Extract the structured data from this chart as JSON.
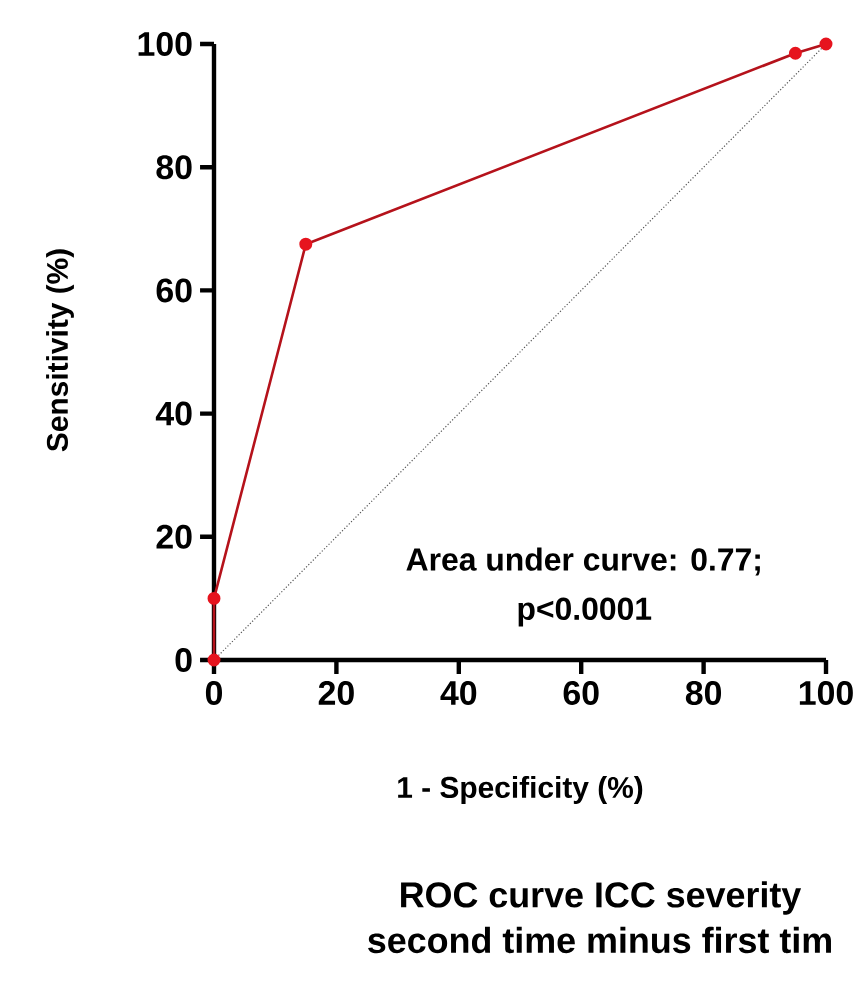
{
  "chart_data": {
    "type": "line",
    "xlabel": "1 - Specificity (%)",
    "ylabel": "Sensitivity  (%)",
    "title": "ROC curve ICC severity",
    "subtitle": "second time minus first tim",
    "annotations": [
      "Area under curve: 0.77;",
      "p<0.0001"
    ],
    "xlim": [
      0,
      100
    ],
    "ylim": [
      0,
      100
    ],
    "xticks": [
      0,
      20,
      40,
      60,
      80,
      100
    ],
    "yticks": [
      0,
      20,
      40,
      60,
      80,
      100
    ],
    "grid": false,
    "series": [
      {
        "color": "#b5121b",
        "marker": "circle",
        "line_style": "solid",
        "x": [
          0,
          0,
          15,
          95,
          100
        ],
        "values": [
          0,
          10,
          67.5,
          98.5,
          100
        ]
      },
      {
        "color": "#555555",
        "marker": "none",
        "line_style": "dotted",
        "x": [
          0,
          100
        ],
        "values": [
          0,
          100
        ]
      }
    ]
  }
}
